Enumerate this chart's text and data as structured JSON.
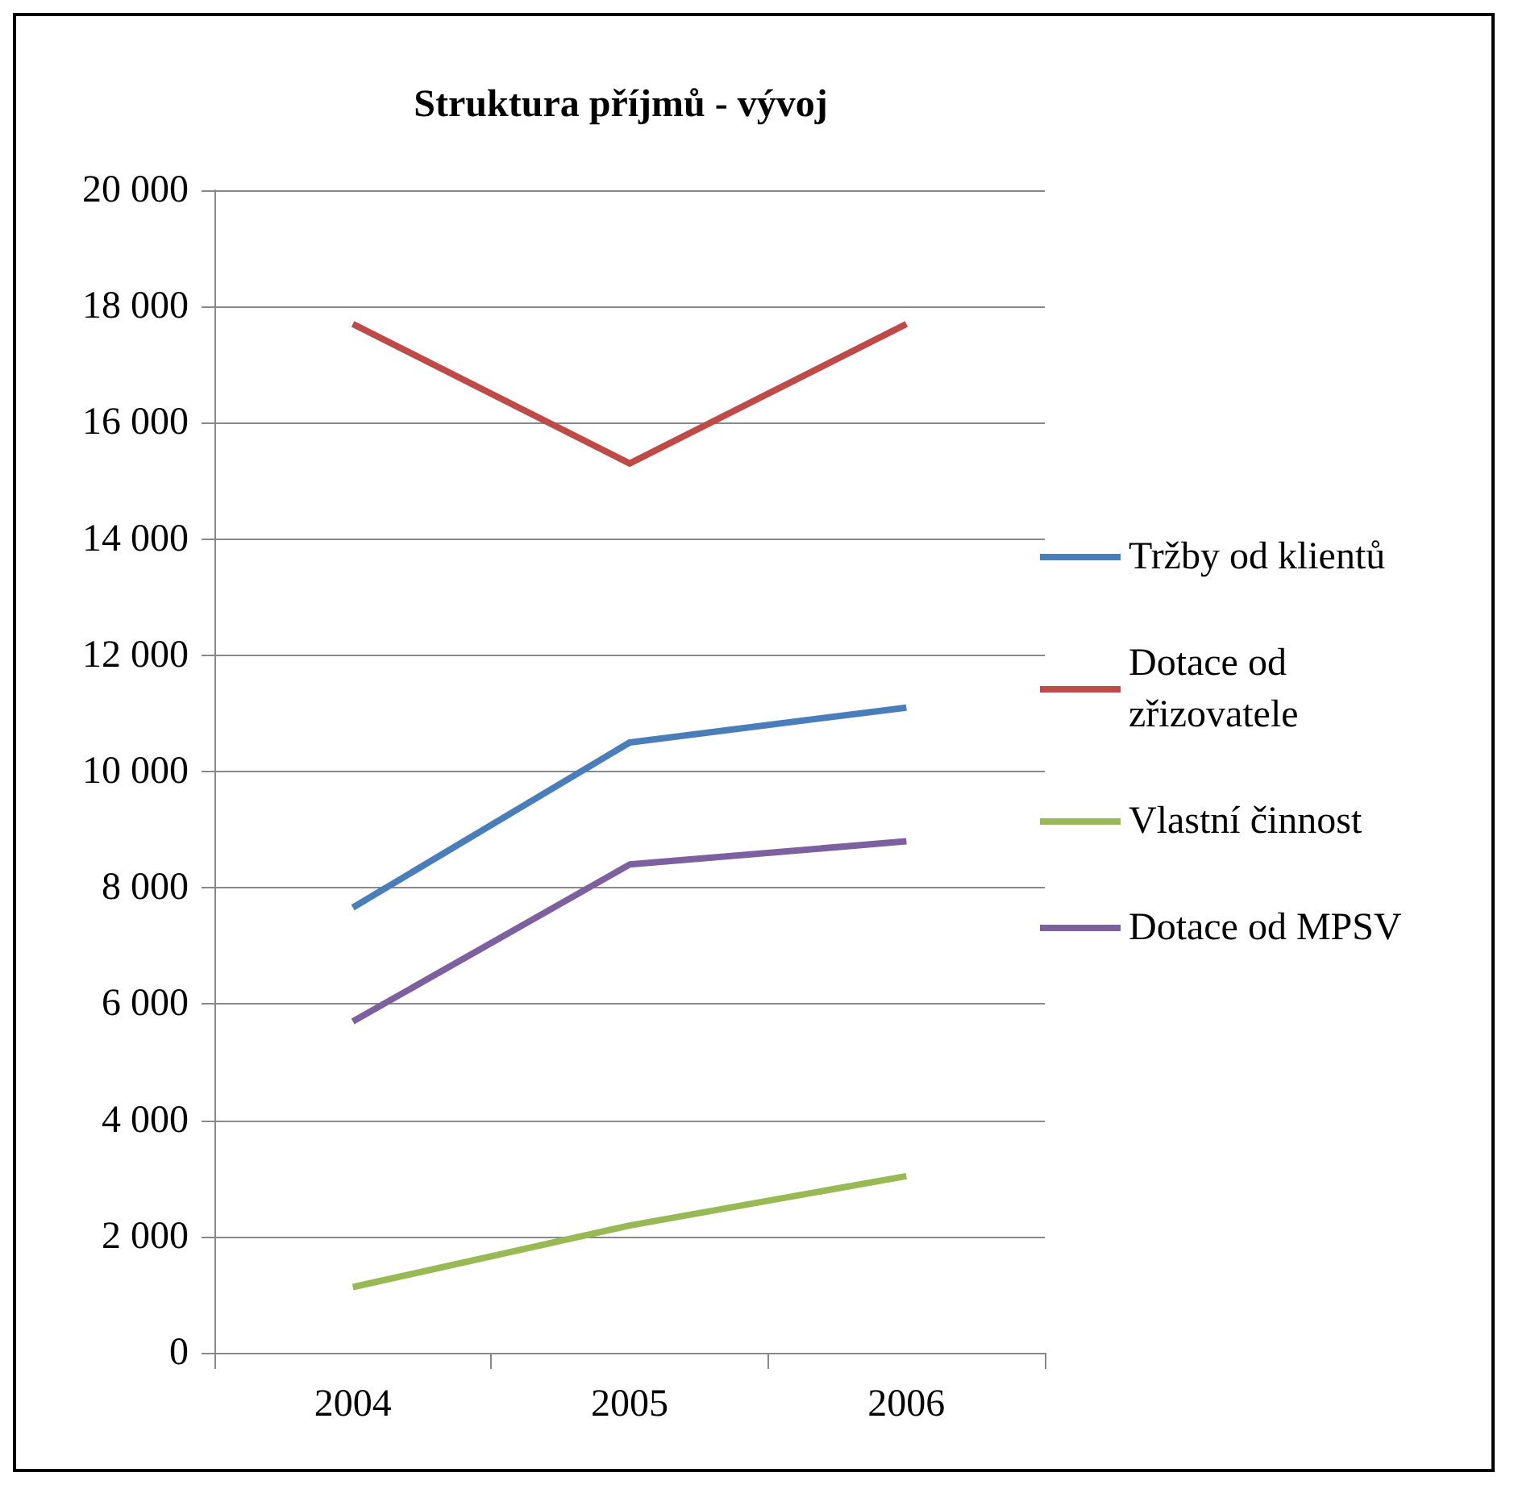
{
  "chart_data": {
    "type": "line",
    "title": "Struktura příjmů - vývoj",
    "categories": [
      "2004",
      "2005",
      "2006"
    ],
    "series": [
      {
        "name": "Tržby od klientů",
        "color": "#4a7ebb",
        "values": [
          7660,
          10500,
          11100
        ]
      },
      {
        "name": "Dotace od zřizovatele",
        "color": "#be4b48",
        "values": [
          17700,
          15300,
          17700
        ]
      },
      {
        "name": "Vlastní činnost",
        "color": "#98b954",
        "values": [
          1130,
          2190,
          3040
        ]
      },
      {
        "name": "Dotace od MPSV",
        "color": "#7d60a0",
        "values": [
          5700,
          8400,
          8800
        ]
      }
    ],
    "ylim": [
      0,
      20000
    ],
    "yticks": [
      0,
      {
        "value": 2000,
        "label": "2 000"
      },
      {
        "value": 4000,
        "label": "4 000"
      },
      {
        "value": 6000,
        "label": "6 000"
      },
      {
        "value": 8000,
        "label": "8 000"
      },
      {
        "value": 10000,
        "label": "10 000"
      },
      {
        "value": 12000,
        "label": "12 000"
      },
      {
        "value": 14000,
        "label": "14 000"
      },
      {
        "value": 16000,
        "label": "16 000"
      },
      {
        "value": 18000,
        "label": "18 000"
      },
      {
        "value": 20000,
        "label": "20 000"
      }
    ],
    "grid": "y",
    "legend": "right",
    "marker": "none",
    "line_style": "solid"
  }
}
